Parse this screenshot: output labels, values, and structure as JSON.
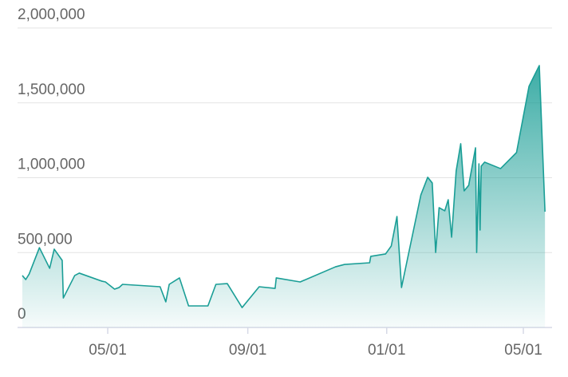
{
  "chart_data": {
    "type": "area",
    "color": "#1a9e96",
    "grid": true,
    "x": [
      -75,
      -72,
      -69,
      -60,
      -51,
      -47,
      -40,
      -39,
      -29,
      -25,
      -5,
      -2,
      6,
      10,
      13,
      46,
      51,
      54,
      63,
      71,
      88,
      95,
      105,
      118,
      133,
      147,
      148,
      169,
      200,
      208,
      230,
      231,
      244,
      249,
      254,
      258,
      275,
      281,
      285,
      288,
      291,
      296,
      299,
      302,
      306,
      310,
      313,
      317,
      323,
      324,
      326,
      327,
      328,
      331,
      345,
      359,
      370,
      379,
      384
    ],
    "values": [
      347000,
      320000,
      357000,
      533000,
      395000,
      523000,
      448000,
      197000,
      347000,
      363000,
      309000,
      304000,
      256000,
      267000,
      288000,
      272000,
      171000,
      288000,
      331000,
      144000,
      144000,
      288000,
      293000,
      133000,
      272000,
      261000,
      331000,
      304000,
      405000,
      421000,
      432000,
      475000,
      491000,
      544000,
      741000,
      267000,
      885000,
      1003000,
      965000,
      501000,
      800000,
      779000,
      853000,
      603000,
      1045000,
      1227000,
      912000,
      949000,
      1200000,
      501000,
      1093000,
      651000,
      1077000,
      1104000,
      1061000,
      1168000,
      1611000,
      1749000,
      773000
    ],
    "xlim": [
      -75,
      386
    ],
    "xticks": [
      {
        "value": 0,
        "label": "05/01"
      },
      {
        "value": 123,
        "label": "09/01"
      },
      {
        "value": 245,
        "label": "01/01"
      },
      {
        "value": 365,
        "label": "05/01"
      }
    ],
    "ylim": [
      0,
      2000000
    ],
    "yticks": [
      0,
      {
        "value": 500000,
        "label": "500,000"
      },
      {
        "value": 1000000,
        "label": "1,000,000"
      },
      {
        "value": 1500000,
        "label": "1,500,000"
      },
      {
        "value": 2000000,
        "label": "2,000,000"
      }
    ]
  }
}
